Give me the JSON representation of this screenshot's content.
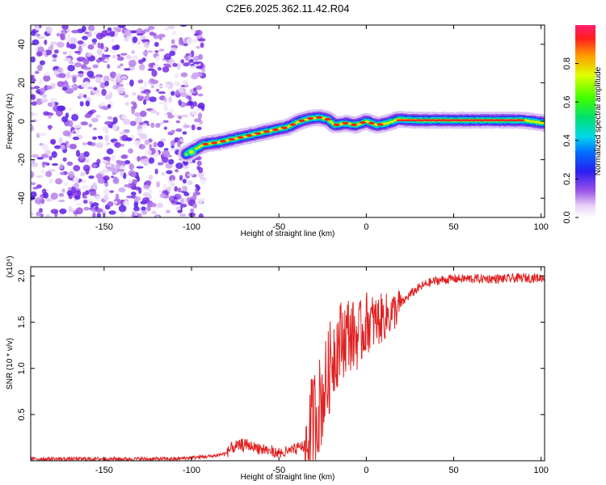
{
  "title": "C2E6.2025.362.11.42.R04",
  "chart_data": [
    {
      "type": "heatmap",
      "xlabel": "Height of straight line (km)",
      "ylabel": "Frequency (Hz)",
      "xlim": [
        -192,
        102
      ],
      "ylim": [
        -50,
        50
      ],
      "x_ticks": [
        -150,
        -100,
        -50,
        0,
        50,
        100
      ],
      "y_ticks": [
        -40,
        -20,
        0,
        20,
        40
      ],
      "colorbar": {
        "label": "Normalized spectral amplitude",
        "range": [
          0,
          1
        ],
        "ticks": [
          0.0,
          0.2,
          0.4,
          0.6,
          0.8
        ],
        "tick_labels": [
          "0.0",
          "0.2",
          "0.4",
          "0.6",
          "0.8"
        ]
      },
      "noise_region_x": [
        -192,
        -93
      ],
      "ridge": {
        "x": [
          -103,
          -93,
          -85,
          -75,
          -65,
          -55,
          -45,
          -38,
          -32,
          -27,
          -22,
          -18,
          -12,
          -6,
          0,
          6,
          12,
          18,
          30,
          50,
          70,
          90,
          102
        ],
        "y": [
          -17,
          -12,
          -11,
          -9,
          -7,
          -5,
          -3,
          0,
          1.5,
          2,
          1,
          -2,
          -1,
          -2,
          0,
          -2,
          -1,
          1,
          0.5,
          0.5,
          0.5,
          0.5,
          -1
        ]
      }
    },
    {
      "type": "line",
      "xlabel": "Height of straight line (km)",
      "ylabel": "SNR (10 * v/v)",
      "y_multiplier": "(x10⁴)",
      "xlim": [
        -192,
        102
      ],
      "ylim": [
        0,
        2.1
      ],
      "x_ticks": [
        -150,
        -100,
        -50,
        0,
        50,
        100
      ],
      "y_ticks": [
        0.5,
        1.0,
        1.5,
        2.0
      ],
      "y_tick_labels": [
        "0.5",
        "1.0",
        "1.5",
        "2.0"
      ],
      "color": "#e02020",
      "series": [
        {
          "x": [
            -192,
            -150,
            -110,
            -95,
            -88,
            -80,
            -75,
            -70,
            -65,
            -60,
            -55,
            -50,
            -45,
            -40,
            -35,
            -32,
            -30,
            -28,
            -25,
            -22,
            -20,
            -18,
            -15,
            -12,
            -10,
            -8,
            -5,
            -2,
            0,
            5,
            10,
            15,
            20,
            25,
            30,
            35,
            40,
            50,
            60,
            70,
            80,
            90,
            98,
            102
          ],
          "y": [
            0.02,
            0.02,
            0.02,
            0.04,
            0.05,
            0.08,
            0.12,
            0.15,
            0.13,
            0.1,
            0.08,
            0.05,
            0.07,
            0.1,
            0.15,
            0.3,
            0.45,
            0.55,
            0.7,
            0.9,
            1.1,
            1.2,
            1.3,
            1.35,
            1.4,
            1.35,
            1.35,
            1.4,
            1.5,
            1.5,
            1.55,
            1.6,
            1.7,
            1.8,
            1.87,
            1.92,
            1.95,
            1.97,
            1.97,
            1.97,
            1.97,
            1.98,
            1.98,
            1.98
          ]
        }
      ]
    }
  ]
}
